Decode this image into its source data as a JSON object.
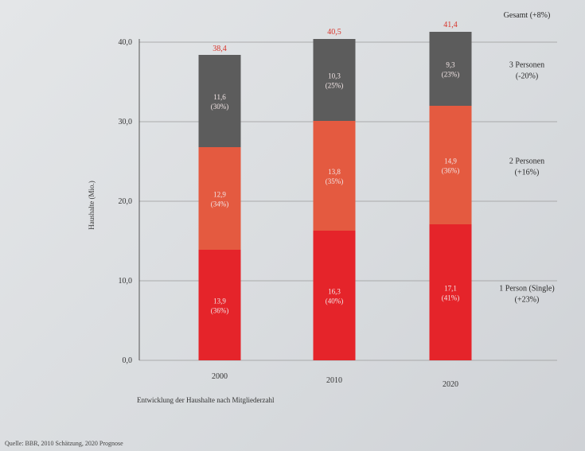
{
  "chart_data": {
    "type": "bar",
    "stacked": true,
    "categories": [
      "2000",
      "2010",
      "2020"
    ],
    "series": [
      {
        "name": "1 Person (Single)",
        "change": "(+23%)",
        "values": [
          13.9,
          16.3,
          17.1
        ],
        "labels": [
          "13,9",
          "16,3",
          "17,1"
        ],
        "shares": [
          "(36%)",
          "(40%)",
          "(41%)"
        ],
        "color": "#e5242a"
      },
      {
        "name": "2 Personen",
        "change": "(+16%)",
        "values": [
          12.9,
          13.8,
          14.9
        ],
        "labels": [
          "12,9",
          "13,8",
          "14,9"
        ],
        "shares": [
          "(34%)",
          "(35%)",
          "(36%)"
        ],
        "color": "#e45a40"
      },
      {
        "name": "3 Personen",
        "change": "(-20%)",
        "values": [
          11.6,
          10.3,
          9.3
        ],
        "labels": [
          "11,6",
          "10,3",
          "9,3"
        ],
        "shares": [
          "(30%)",
          "(25%)",
          "(23%)"
        ],
        "color": "#5c5c5c"
      }
    ],
    "totals": {
      "values": [
        38.4,
        40.5,
        41.4
      ],
      "labels": [
        "38,4",
        "40,5",
        "41,4"
      ]
    },
    "total_legend": "Gesamt (+8%)",
    "ylim": [
      0,
      40
    ],
    "yticks": [
      0,
      10,
      20,
      30,
      40
    ],
    "ytick_labels": [
      "0,0",
      "10,0",
      "20,0",
      "30,0",
      "40,0"
    ],
    "ylabel": "Haushalte (Mio.)",
    "xlabel": "",
    "subtitle": "Entwicklung der Haushalte nach Mitgliederzahl",
    "grid": true,
    "legend_position": "right"
  },
  "source": "Quelle: BBR, 2010 Schätzung, 2020 Prognose",
  "colors": {
    "accent": "#d8342a",
    "grid": "#9a9a9a"
  }
}
